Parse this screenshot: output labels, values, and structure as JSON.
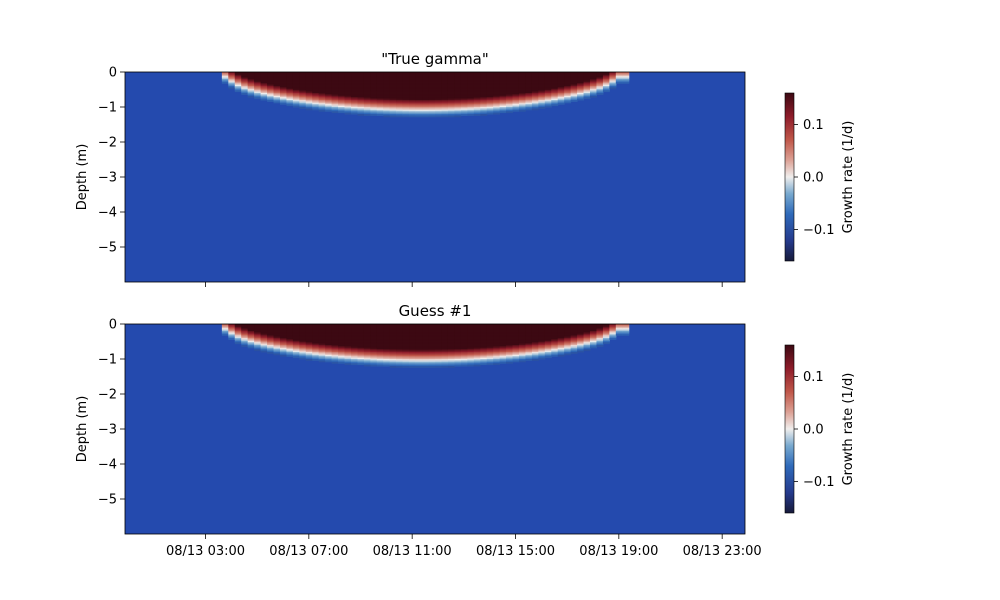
{
  "chart_data": [
    {
      "type": "heatmap",
      "title": "\"True gamma\"",
      "xlabel": "",
      "ylabel": "Depth (m)",
      "colorbar_label": "Growth rate (1/d)",
      "colormap": "balance (diverging: dark blue - white - dark red)",
      "x_range": [
        "08/13 00:00",
        "08/14 00:00"
      ],
      "ylim": [
        -6,
        0
      ],
      "clim": [
        -0.16,
        0.16
      ],
      "y_ticks": [
        0,
        -1,
        -2,
        -3,
        -4,
        -5
      ],
      "y_tick_labels": [
        "0",
        "−1",
        "−2",
        "−3",
        "−4",
        "−5"
      ],
      "colorbar_ticks": [
        0.1,
        0.0,
        -0.1
      ],
      "colorbar_tick_labels": [
        "0.1",
        "0.0",
        "−0.1"
      ],
      "x_tick_labels": [],
      "daylight_hours": [
        4.0,
        19.0
      ],
      "peak_boundary_depth": -0.95,
      "background_value": -0.1,
      "peak_value": 0.16
    },
    {
      "type": "heatmap",
      "title": "Guess #1",
      "xlabel": "",
      "ylabel": "Depth (m)",
      "colorbar_label": "Growth rate (1/d)",
      "colormap": "balance (diverging: dark blue - white - dark red)",
      "x_range": [
        "08/13 00:00",
        "08/14 00:00"
      ],
      "ylim": [
        -6,
        0
      ],
      "clim": [
        -0.16,
        0.16
      ],
      "y_ticks": [
        0,
        -1,
        -2,
        -3,
        -4,
        -5
      ],
      "y_tick_labels": [
        "0",
        "−1",
        "−2",
        "−3",
        "−4",
        "−5"
      ],
      "colorbar_ticks": [
        0.1,
        0.0,
        -0.1
      ],
      "colorbar_tick_labels": [
        "0.1",
        "0.0",
        "−0.1"
      ],
      "x_ticks_hours": [
        3,
        7,
        11,
        15,
        19,
        23
      ],
      "x_tick_labels": [
        "08/13 03:00",
        "08/13 07:00",
        "08/13 11:00",
        "08/13 15:00",
        "08/13 19:00",
        "08/13 23:00"
      ],
      "daylight_hours": [
        4.0,
        19.0
      ],
      "peak_boundary_depth": -0.9,
      "background_value": -0.1,
      "peak_value": 0.16
    }
  ],
  "colors": {
    "background_blue": "#244aae",
    "deep_red": "#3f0a13"
  }
}
